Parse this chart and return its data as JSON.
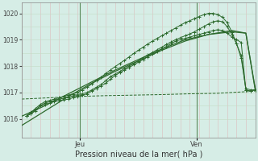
{
  "xlabel": "Pression niveau de la mer( hPa )",
  "ylim": [
    1015.3,
    1020.4
  ],
  "xlim": [
    0,
    50
  ],
  "yticks": [
    1016,
    1017,
    1018,
    1019,
    1020
  ],
  "xtick_positions": [
    12.5,
    37.5
  ],
  "xtick_labels": [
    "Jeu",
    "Ven"
  ],
  "bg_color": "#d6ede6",
  "plot_bg": "#d6ede6",
  "line_color": "#2d6a2d",
  "vline_color": "#7aaa7a",
  "grid_color": "#c4dcc4",
  "grid_color_v": "#ddbbbb",
  "line_smooth_x": [
    0,
    5,
    10,
    15,
    20,
    25,
    30,
    35,
    40,
    45,
    48,
    50
  ],
  "line_smooth_y": [
    1015.75,
    1016.3,
    1016.85,
    1017.35,
    1017.8,
    1018.2,
    1018.6,
    1018.95,
    1019.2,
    1019.3,
    1019.25,
    1017.1
  ],
  "line_smooth2_x": [
    0,
    5,
    10,
    15,
    20,
    25,
    30,
    35,
    40,
    45,
    48,
    50
  ],
  "line_smooth2_y": [
    1016.1,
    1016.5,
    1016.95,
    1017.4,
    1017.85,
    1018.25,
    1018.65,
    1019.0,
    1019.2,
    1019.35,
    1019.25,
    1017.15
  ],
  "line_dashed_x": [
    0,
    6,
    12,
    18,
    24,
    30,
    36,
    42,
    50
  ],
  "line_dashed_y": [
    1016.75,
    1016.8,
    1016.85,
    1016.88,
    1016.9,
    1016.92,
    1016.95,
    1016.97,
    1017.05
  ],
  "line_jagged1_x": [
    1,
    2,
    3,
    4,
    5,
    6,
    7,
    8,
    9,
    10,
    11,
    12,
    13,
    14,
    15,
    16,
    17,
    18,
    19,
    20,
    21,
    22,
    23,
    24,
    25,
    26,
    27,
    28,
    29,
    30,
    31,
    32,
    33,
    34,
    35,
    36,
    37,
    38,
    39,
    40,
    41,
    42,
    43,
    44,
    45,
    46,
    47,
    48,
    49,
    50
  ],
  "line_jagged1_y": [
    1016.1,
    1016.2,
    1016.35,
    1016.5,
    1016.55,
    1016.6,
    1016.65,
    1016.7,
    1016.72,
    1016.75,
    1016.8,
    1016.85,
    1016.9,
    1016.95,
    1017.05,
    1017.15,
    1017.25,
    1017.35,
    1017.5,
    1017.65,
    1017.75,
    1017.85,
    1017.95,
    1018.05,
    1018.15,
    1018.25,
    1018.35,
    1018.45,
    1018.55,
    1018.65,
    1018.75,
    1018.85,
    1018.95,
    1019.0,
    1019.05,
    1019.1,
    1019.15,
    1019.2,
    1019.25,
    1019.3,
    1019.35,
    1019.38,
    1019.35,
    1019.25,
    1019.1,
    1019.0,
    1018.9,
    1017.1,
    1017.05,
    1017.1
  ],
  "line_jagged2_x": [
    1,
    2,
    3,
    4,
    5,
    6,
    7,
    8,
    9,
    10,
    11,
    12,
    13,
    14,
    15,
    16,
    17,
    18,
    19,
    20,
    21,
    22,
    23,
    24,
    25,
    26,
    27,
    28,
    29,
    30,
    31,
    32,
    33,
    34,
    35,
    36,
    37,
    38,
    39,
    40,
    41,
    42,
    43,
    44,
    45,
    46,
    47,
    48,
    49,
    50
  ],
  "line_jagged2_y": [
    1016.1,
    1016.2,
    1016.3,
    1016.5,
    1016.6,
    1016.65,
    1016.7,
    1016.75,
    1016.78,
    1016.82,
    1016.88,
    1016.92,
    1016.95,
    1017.0,
    1017.1,
    1017.2,
    1017.3,
    1017.45,
    1017.6,
    1017.7,
    1017.8,
    1017.9,
    1018.0,
    1018.1,
    1018.2,
    1018.32,
    1018.42,
    1018.52,
    1018.62,
    1018.72,
    1018.82,
    1018.92,
    1019.0,
    1019.08,
    1019.15,
    1019.22,
    1019.3,
    1019.4,
    1019.5,
    1019.6,
    1019.68,
    1019.72,
    1019.68,
    1019.5,
    1019.2,
    1018.85,
    1018.4,
    1017.1,
    1017.05,
    1017.1
  ],
  "line_top_x": [
    1,
    2,
    3,
    4,
    5,
    6,
    7,
    8,
    9,
    10,
    11,
    12,
    13,
    14,
    15,
    16,
    17,
    18,
    19,
    20,
    21,
    22,
    23,
    24,
    25,
    26,
    27,
    28,
    29,
    30,
    31,
    32,
    33,
    34,
    35,
    36,
    37,
    38,
    39,
    40,
    41,
    42,
    43,
    44,
    45,
    46,
    47,
    48,
    49,
    50
  ],
  "line_top_y": [
    1016.1,
    1016.25,
    1016.4,
    1016.55,
    1016.65,
    1016.7,
    1016.75,
    1016.8,
    1016.85,
    1016.9,
    1016.95,
    1017.0,
    1017.1,
    1017.2,
    1017.32,
    1017.45,
    1017.58,
    1017.72,
    1017.85,
    1017.98,
    1018.1,
    1018.22,
    1018.35,
    1018.48,
    1018.6,
    1018.72,
    1018.84,
    1018.95,
    1019.05,
    1019.15,
    1019.25,
    1019.35,
    1019.45,
    1019.55,
    1019.65,
    1019.72,
    1019.8,
    1019.88,
    1019.95,
    1020.0,
    1020.0,
    1019.95,
    1019.85,
    1019.65,
    1019.3,
    1018.85,
    1018.3,
    1017.15,
    1017.1,
    1017.1
  ]
}
